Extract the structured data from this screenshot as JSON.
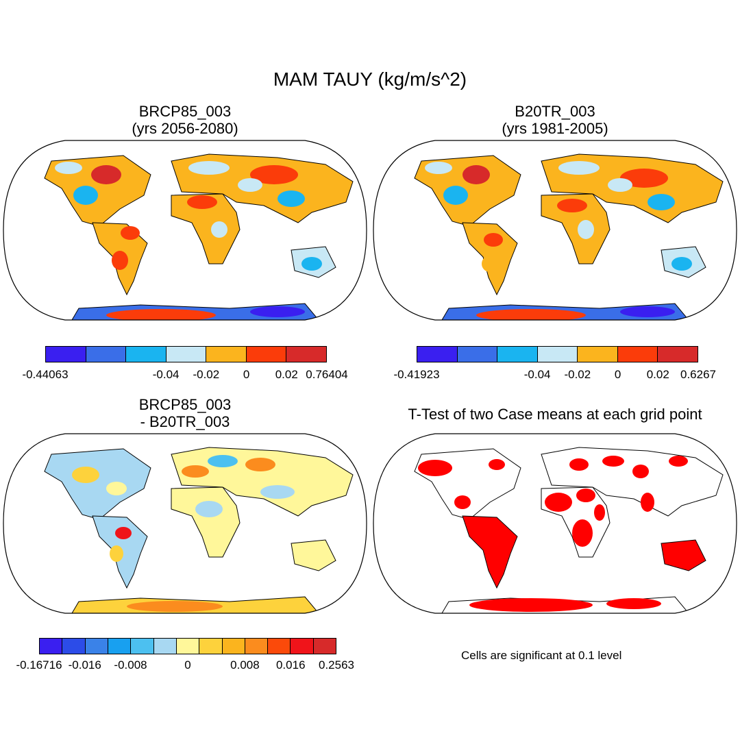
{
  "main_title": "MAM TAUY (kg/m/s^2)",
  "panels": {
    "top_left": {
      "title_line1": "BRCP85_003",
      "title_line2": "(yrs 2056-2080)",
      "colorbar": {
        "colors": [
          "#3a1ff0",
          "#3a6ee8",
          "#1ab4f0",
          "#c8e8f5",
          "#fbb41e",
          "#fb3c0a",
          "#d72a2a"
        ],
        "tick_labels": [
          "-0.44063",
          "-0.04",
          "-0.02",
          "0",
          "0.02",
          "0.76404"
        ]
      }
    },
    "top_right": {
      "title_line1": "B20TR_003",
      "title_line2": "(yrs 1981-2005)",
      "colorbar": {
        "colors": [
          "#3a1ff0",
          "#3a6ee8",
          "#1ab4f0",
          "#c8e8f5",
          "#fbb41e",
          "#fb3c0a",
          "#d72a2a"
        ],
        "tick_labels": [
          "-0.41923",
          "-0.04",
          "-0.02",
          "0",
          "0.02",
          "0.6267"
        ]
      }
    },
    "bottom_left": {
      "title_line1": "BRCP85_003",
      "title_line2": "- B20TR_003",
      "colorbar": {
        "colors": [
          "#3a1ff0",
          "#2c4ce8",
          "#3a82e8",
          "#18a0f0",
          "#4cc0f0",
          "#a8d8f2",
          "#fff79a",
          "#fdd23c",
          "#fbb41e",
          "#fb8c1e",
          "#fb4a0a",
          "#f0141a",
          "#d72a2a"
        ],
        "tick_labels": [
          "-0.16716",
          "-0.016",
          "-0.008",
          "0",
          "0.008",
          "0.016",
          "0.2563"
        ]
      }
    },
    "bottom_right": {
      "title_line1": "T-Test of two Case means at each grid point",
      "note": "Cells are significant at 0.1 level",
      "significant_color": "#ff0000"
    }
  }
}
